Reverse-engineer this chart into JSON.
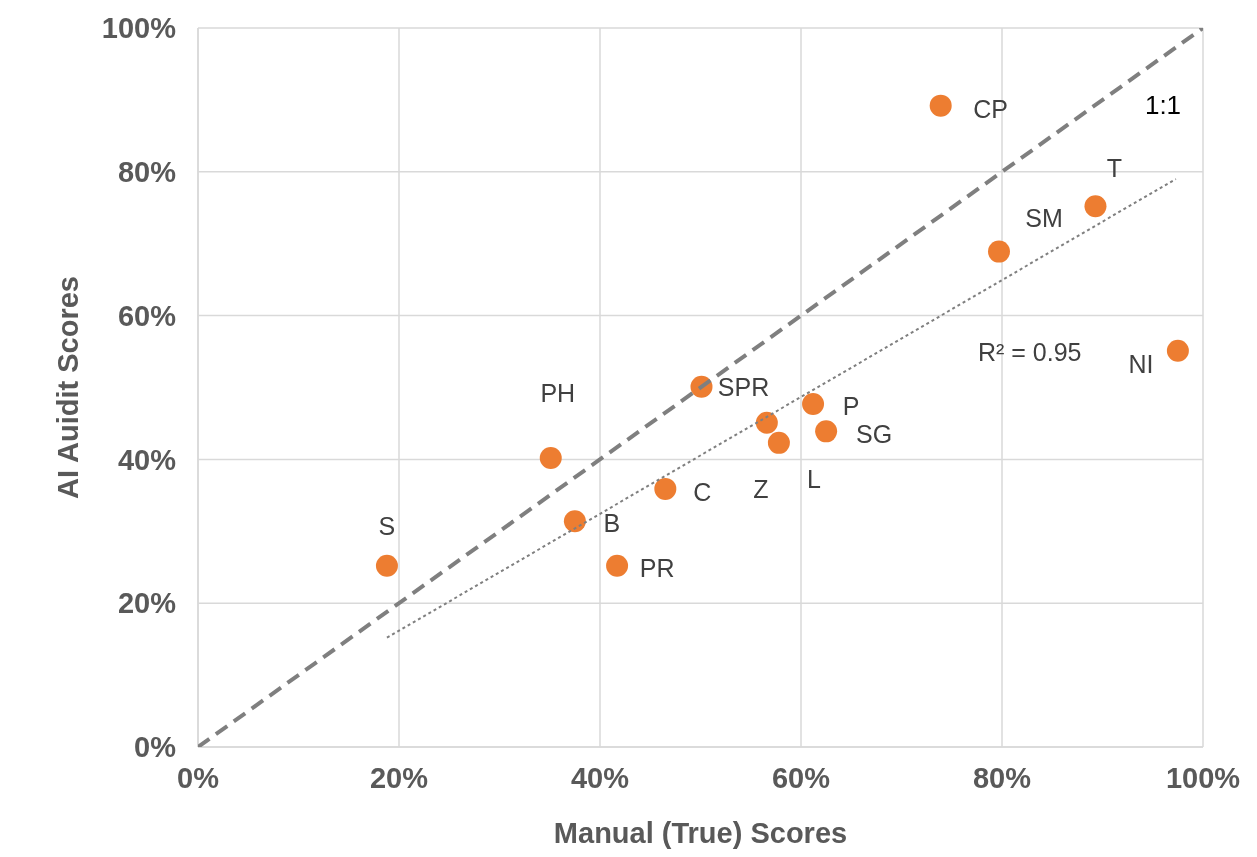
{
  "chart_data": {
    "type": "scatter",
    "xlabel": "Manual (True) Scores",
    "ylabel": "AI Auidit Scores",
    "xlim": [
      0,
      100
    ],
    "ylim": [
      0,
      100
    ],
    "xticks": [
      {
        "value": 0,
        "label": "0%"
      },
      {
        "value": 20,
        "label": "20%"
      },
      {
        "value": 40,
        "label": "40%"
      },
      {
        "value": 60,
        "label": "60%"
      },
      {
        "value": 80,
        "label": "80%"
      },
      {
        "value": 100,
        "label": "100%"
      }
    ],
    "yticks": [
      {
        "value": 0,
        "label": "0%"
      },
      {
        "value": 20,
        "label": "20%"
      },
      {
        "value": 40,
        "label": "40%"
      },
      {
        "value": 60,
        "label": "60%"
      },
      {
        "value": 80,
        "label": "80%"
      },
      {
        "value": 100,
        "label": "100%"
      }
    ],
    "grid": true,
    "legend": false,
    "series": [
      {
        "type": "scatter",
        "marker": "circle",
        "color": "#ed7d31",
        "x": [
          18.8,
          35.1,
          37.5,
          41.7,
          46.5,
          50.1,
          56.6,
          57.8,
          61.2,
          62.5,
          79.7,
          89.3,
          73.9,
          97.5
        ],
        "values": [
          25.2,
          40.2,
          31.4,
          25.2,
          35.9,
          50.1,
          45.1,
          42.3,
          47.7,
          43.9,
          68.9,
          75.2,
          89.2,
          55.1
        ]
      },
      {
        "type": "line",
        "name": "1:1",
        "marker": "none",
        "color": "#7f7f7f",
        "line_style": "dashed",
        "x": [
          0,
          100
        ],
        "values": [
          0,
          100
        ]
      },
      {
        "type": "line",
        "marker": "none",
        "color": "#7f7f7f",
        "line_style": "dotted",
        "x": [
          18.8,
          97.3
        ],
        "values": [
          15.2,
          79.0
        ]
      }
    ],
    "annotations": [
      {
        "text": "S",
        "x": 18.8,
        "y": 25.2
      },
      {
        "text": "PH",
        "x": 35.1,
        "y": 40.2
      },
      {
        "text": "B",
        "x": 37.5,
        "y": 31.4
      },
      {
        "text": "PR",
        "x": 41.7,
        "y": 25.2
      },
      {
        "text": "C",
        "x": 46.5,
        "y": 35.9
      },
      {
        "text": "SPR",
        "x": 50.1,
        "y": 50.1
      },
      {
        "text": "Z",
        "x": 56.6,
        "y": 45.1
      },
      {
        "text": "L",
        "x": 57.8,
        "y": 42.3
      },
      {
        "text": "P",
        "x": 61.2,
        "y": 47.7
      },
      {
        "text": "SG",
        "x": 62.5,
        "y": 43.9
      },
      {
        "text": "SM",
        "x": 79.7,
        "y": 68.9
      },
      {
        "text": "T",
        "x": 89.3,
        "y": 75.2
      },
      {
        "text": "CP",
        "x": 73.9,
        "y": 89.2
      },
      {
        "text": "NI",
        "x": 97.5,
        "y": 55.1
      },
      "R² = 0.95"
    ]
  }
}
